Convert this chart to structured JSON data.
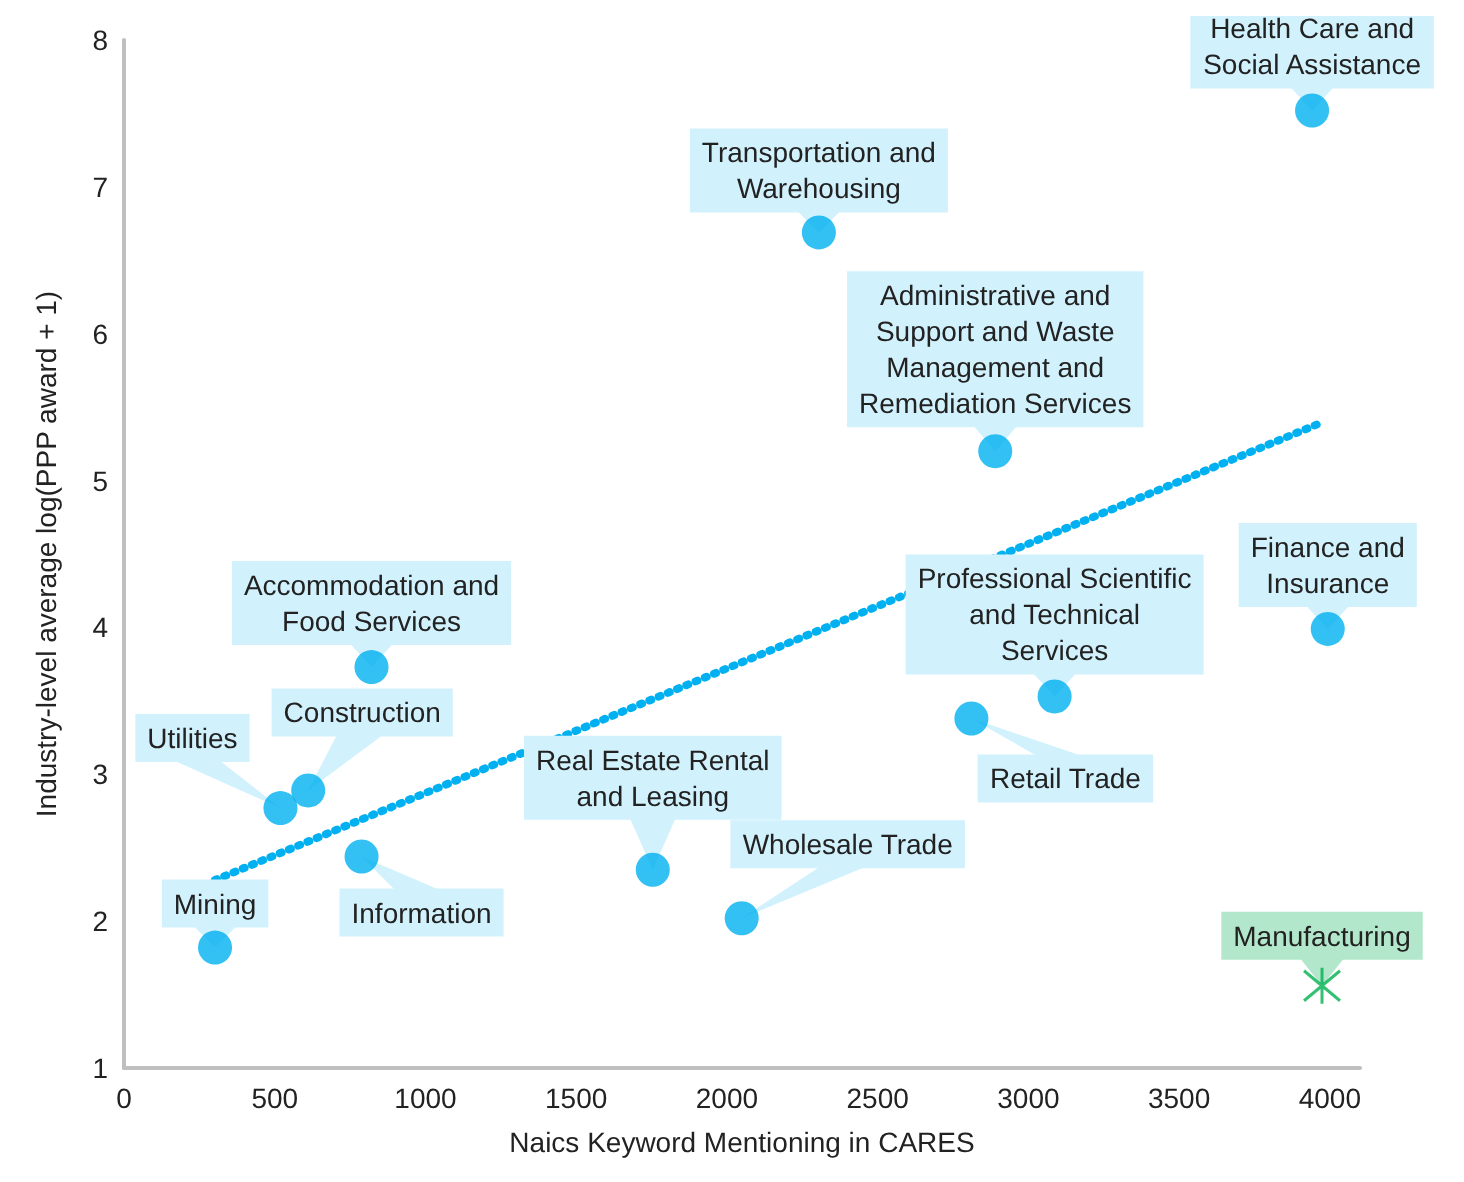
{
  "chart_data": {
    "type": "scatter",
    "xlabel": "Naics Keyword Mentioning in CARES",
    "ylabel": "Industry-level average log(PPP award + 1)",
    "xlim": [
      0,
      4100
    ],
    "xticks": [
      0,
      500,
      1000,
      1500,
      2000,
      2500,
      3000,
      3500,
      4000
    ],
    "ylim": [
      1,
      8
    ],
    "yticks": [
      1,
      2,
      3,
      4,
      5,
      6,
      7,
      8
    ],
    "grid": false,
    "series": [
      {
        "color": "#00b0f0",
        "marker": "circle",
        "x": [
          302,
          519,
          611,
          788,
          821,
          1754,
          2049,
          2811,
          3087,
          3993,
          2305,
          2890,
          3941
        ],
        "values": [
          1.82,
          2.77,
          2.89,
          2.44,
          3.73,
          2.35,
          2.02,
          3.38,
          3.53,
          3.99,
          6.69,
          5.2,
          7.52
        ]
      },
      {
        "color": "#00b050",
        "marker": "cross",
        "x": [
          3974
        ],
        "values": [
          1.56
        ]
      },
      {
        "type": "line",
        "color": "#00b0f0",
        "line_style": "dotted",
        "marker": "none",
        "x": [
          302,
          3967
        ],
        "values": [
          2.28,
          5.39
        ]
      }
    ],
    "annotations": [
      {
        "text": "Mining",
        "x": 302,
        "y": 1.82
      },
      {
        "text": "Utilities",
        "x": 519,
        "y": 2.77
      },
      {
        "text": "Construction",
        "x": 611,
        "y": 2.89
      },
      {
        "text": "Information",
        "x": 788,
        "y": 2.44
      },
      {
        "text": "Accommodation and\nFood Services",
        "x": 821,
        "y": 3.73
      },
      {
        "text": "Real Estate Rental\nand Leasing",
        "x": 1754,
        "y": 2.35
      },
      {
        "text": "Wholesale Trade",
        "x": 2049,
        "y": 2.02
      },
      {
        "text": "Retail Trade",
        "x": 2811,
        "y": 3.38
      },
      {
        "text": "Professional Scientific\nand Technical\nServices",
        "x": 3087,
        "y": 3.53
      },
      {
        "text": "Finance and\nInsurance",
        "x": 3993,
        "y": 3.99
      },
      {
        "text": "Transportation and\nWarehousing",
        "x": 2305,
        "y": 6.69
      },
      {
        "text": "Administrative and\nSupport and Waste\nManagement and\nRemediation Services",
        "x": 2890,
        "y": 5.2
      },
      {
        "text": "Health Care and\nSocial Assistance",
        "x": 3941,
        "y": 7.52
      },
      {
        "text": "Manufacturing",
        "x": 3974,
        "y": 1.56
      }
    ]
  }
}
